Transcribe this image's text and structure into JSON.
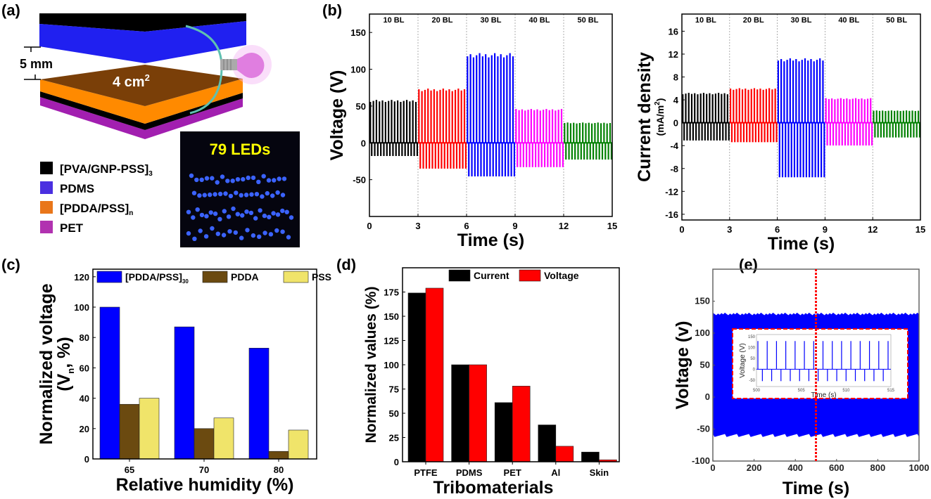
{
  "panel_labels": {
    "a": "(a)",
    "b": "(b)",
    "c": "(c)",
    "d": "(d)",
    "e": "(e)"
  },
  "panel_a": {
    "gap_label": "5 mm",
    "area_label": "4 cm",
    "area_sup": "2",
    "led_caption": "79 LEDs",
    "led_count": 79,
    "legend": [
      {
        "label": "[PVA/GNP-PSS]",
        "sub": "3",
        "color": "#000000"
      },
      {
        "label": "PDMS",
        "sub": "",
        "color": "#4a2fe0"
      },
      {
        "label": "[PDDA/PSS]",
        "sub": "n",
        "color": "#e9761a"
      },
      {
        "label": "PET",
        "sub": "",
        "color": "#b132b0"
      }
    ],
    "colors": {
      "pdms": "#2020f0",
      "electrode": "#000000",
      "pdda_top": "#7a3f08",
      "pdda_side": "#ff8a00",
      "pet": "#a21fb0",
      "wire": "#5fc0b0",
      "bulb": "#e07ee0",
      "led_panel": "#05050f",
      "led": "#3b63ff",
      "led_text": "#ffff00"
    }
  },
  "chart_data": [
    {
      "id": "b-voltage",
      "type": "line",
      "title": "",
      "xlabel": "Time (s)",
      "ylabel": "Voltage (V)",
      "xlim": [
        0,
        15
      ],
      "ylim": [
        -100,
        175
      ],
      "xticks": [
        0,
        3,
        6,
        9,
        12,
        15
      ],
      "yticks": [
        -50,
        0,
        50,
        100,
        150
      ],
      "segment_boundaries": [
        3,
        6,
        9,
        12
      ],
      "pulses_per_segment": 16,
      "series": [
        {
          "name": "10 BL",
          "x_range": [
            0,
            3
          ],
          "color": "#000000",
          "peak_pos": 57,
          "peak_neg": -19
        },
        {
          "name": "20 BL",
          "x_range": [
            3,
            6
          ],
          "color": "#ff0000",
          "peak_pos": 72,
          "peak_neg": -35
        },
        {
          "name": "30 BL",
          "x_range": [
            6,
            9
          ],
          "color": "#0000ff",
          "peak_pos": 119,
          "peak_neg": -43
        },
        {
          "name": "40 BL",
          "x_range": [
            9,
            12
          ],
          "color": "#ff00ff",
          "peak_pos": 45,
          "peak_neg": -34
        },
        {
          "name": "50 BL",
          "x_range": [
            12,
            15
          ],
          "color": "#008000",
          "peak_pos": 27,
          "peak_neg": -22
        }
      ]
    },
    {
      "id": "b-current",
      "type": "line",
      "title": "",
      "xlabel": "Time (s)",
      "ylabel": "Current density",
      "ylabel_unit": "(mA/m",
      "ylabel_unit_sup": "2",
      "ylabel_unit_end": ")",
      "xlim": [
        0,
        15
      ],
      "ylim": [
        -17,
        19
      ],
      "xticks": [
        0,
        3,
        6,
        9,
        12,
        15
      ],
      "yticks": [
        -16,
        -12,
        -8,
        -4,
        0,
        4,
        8,
        12,
        16
      ],
      "segment_boundaries": [
        3,
        6,
        9,
        12
      ],
      "pulses_per_segment": 16,
      "series": [
        {
          "name": "10 BL",
          "x_range": [
            0,
            3
          ],
          "color": "#000000",
          "peak_pos": 5.1,
          "peak_neg": -3.3
        },
        {
          "name": "20 BL",
          "x_range": [
            3,
            6
          ],
          "color": "#ff0000",
          "peak_pos": 5.9,
          "peak_neg": -3.4
        },
        {
          "name": "30 BL",
          "x_range": [
            6,
            9
          ],
          "color": "#0000ff",
          "peak_pos": 11.0,
          "peak_neg": -9.0
        },
        {
          "name": "40 BL",
          "x_range": [
            9,
            12
          ],
          "color": "#ff00ff",
          "peak_pos": 4.2,
          "peak_neg": -4.1
        },
        {
          "name": "50 BL",
          "x_range": [
            12,
            15
          ],
          "color": "#008000",
          "peak_pos": 2.1,
          "peak_neg": -2.5
        }
      ]
    },
    {
      "id": "c-humidity",
      "type": "bar",
      "title": "",
      "xlabel": "Relative humidity (%)",
      "ylabel": "Normalized voltage",
      "ylabel_line2": "(V",
      "ylabel_line2_sub": "n",
      "ylabel_line2_end": ", %)",
      "categories": [
        "65",
        "70",
        "80"
      ],
      "ylim": [
        0,
        125
      ],
      "yticks": [
        0,
        20,
        40,
        60,
        80,
        100,
        120
      ],
      "legend_position": "top",
      "series": [
        {
          "name": "[PDDA/PSS]",
          "name_sub": "30",
          "color": "#0000ff",
          "values": [
            100,
            87,
            73
          ]
        },
        {
          "name": "PDDA",
          "name_sub": "",
          "color": "#6b4a10",
          "values": [
            36,
            20,
            5
          ]
        },
        {
          "name": "PSS",
          "name_sub": "",
          "color": "#f0e46a",
          "values": [
            40,
            27,
            19
          ]
        }
      ]
    },
    {
      "id": "d-tribomaterials",
      "type": "bar",
      "title": "",
      "xlabel": "Tribomaterials",
      "ylabel": "Normalized values (%)",
      "categories": [
        "PTFE",
        "PDMS",
        "PET",
        "Al",
        "Skin"
      ],
      "ylim": [
        0,
        200
      ],
      "yticks": [
        0,
        25,
        50,
        75,
        100,
        125,
        150,
        175
      ],
      "legend_position": "top",
      "series": [
        {
          "name": "Current",
          "color": "#000000",
          "values": [
            174,
            100,
            61,
            38,
            10
          ]
        },
        {
          "name": "Voltage",
          "color": "#ff0000",
          "values": [
            179,
            100,
            78,
            16,
            2
          ]
        }
      ]
    },
    {
      "id": "e-durability",
      "type": "area",
      "title": "",
      "xlabel": "Time (s)",
      "ylabel": "Voltage (v)",
      "xlim": [
        0,
        1000
      ],
      "ylim": [
        -100,
        200
      ],
      "xticks": [
        0,
        200,
        400,
        600,
        800,
        1000
      ],
      "yticks": [
        -100,
        -50,
        0,
        50,
        100,
        150
      ],
      "envelope_upper": 130,
      "envelope_lower": -60,
      "marker_line_x": 500,
      "color": "#0000ff",
      "marker_color": "#ff0000",
      "inset": {
        "xlabel": "Time (s)",
        "ylabel": "Voltage (V)",
        "xticks": [
          "500",
          "505",
          "510",
          "515"
        ],
        "yticks": [
          "-50",
          "0",
          "50",
          "100",
          "150"
        ],
        "ylim": [
          -80,
          160
        ],
        "pulse_count": 15,
        "peak_pos": 130,
        "peak_neg": -55
      }
    }
  ]
}
